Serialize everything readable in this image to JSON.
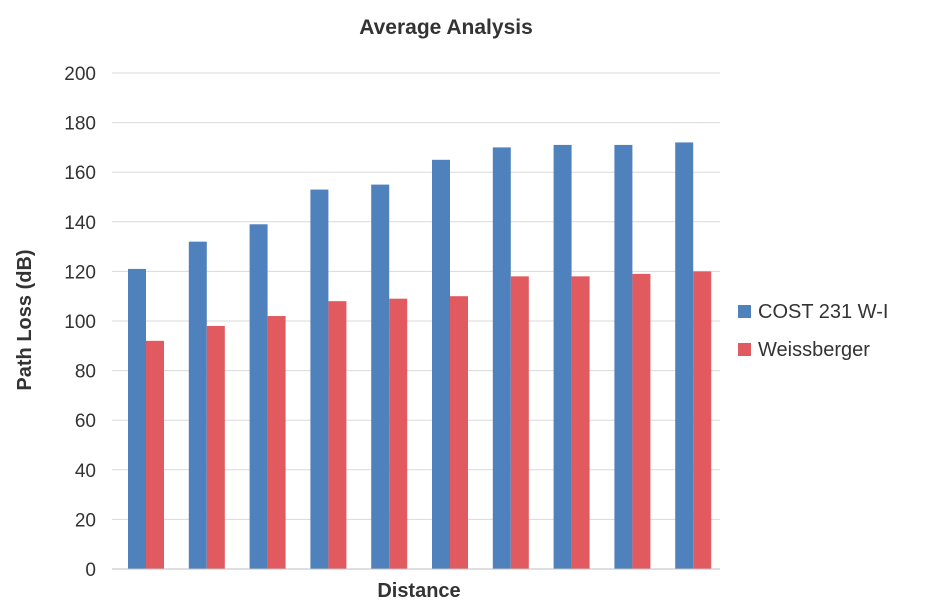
{
  "chart_data": {
    "type": "bar",
    "title": "Average Analysis",
    "xlabel": "Distance",
    "ylabel": "Path Loss (dB)",
    "ylim": [
      0,
      200
    ],
    "yticks": [
      "0",
      "20",
      "40",
      "60",
      "80",
      "100",
      "120",
      "140",
      "160",
      "180",
      "200"
    ],
    "grid": true,
    "legend_position": "right",
    "categories": [
      "",
      "",
      "",
      "",
      "",
      "",
      "",
      "",
      "",
      ""
    ],
    "series": [
      {
        "name": "COST 231 W-I",
        "color": "#4f81bd",
        "values": [
          121,
          132,
          139,
          153,
          155,
          165,
          170,
          171,
          171,
          172
        ]
      },
      {
        "name": "Weissberger",
        "color": "#e05a5f",
        "values": [
          92,
          98,
          102,
          108,
          109,
          110,
          118,
          118,
          119,
          120
        ]
      }
    ]
  }
}
